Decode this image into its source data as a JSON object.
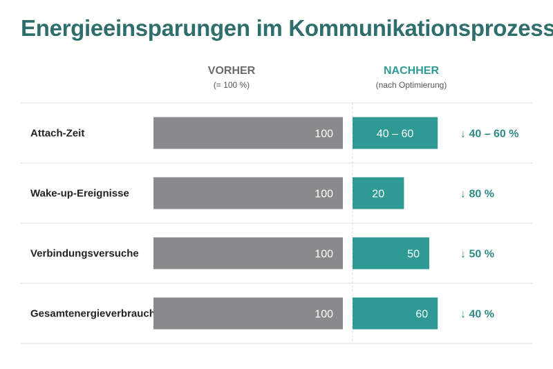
{
  "title": "Energieeinsparungen im Kommunikationsprozess",
  "columns": {
    "before": {
      "label": "VORHER",
      "sub": "(= 100 %)"
    },
    "after": {
      "label": "NACHHER",
      "sub": "(nach Optimierung)"
    }
  },
  "colors": {
    "title": "#2e6e6c",
    "before_bar": "#8a8a8c",
    "after_bar": "#2e9a93",
    "savings": "#2e8a84",
    "grid": "#dddddd"
  },
  "chart_data": {
    "type": "bar",
    "orientation": "horizontal",
    "categories": [
      "Attach-Zeit",
      "Wake-up-Ereignisse",
      "Verbindungsversuche",
      "Gesamtenergieverbrauch"
    ],
    "series": [
      {
        "name": "VORHER",
        "values": [
          100,
          100,
          100,
          100
        ],
        "labels": [
          "100",
          "100",
          "100",
          "100"
        ]
      },
      {
        "name": "NACHHER",
        "values": [
          50,
          20,
          50,
          60
        ],
        "range": [
          [
            40,
            60
          ],
          null,
          null,
          null
        ],
        "labels": [
          "40 – 60",
          "20",
          "50",
          "60"
        ]
      }
    ],
    "savings_labels": [
      "↓ 40 – 60 %",
      "↓ 80 %",
      "↓ 50 %",
      "↓ 40 %"
    ],
    "xlim": [
      0,
      100
    ],
    "grid": true,
    "legend": "column headers"
  }
}
